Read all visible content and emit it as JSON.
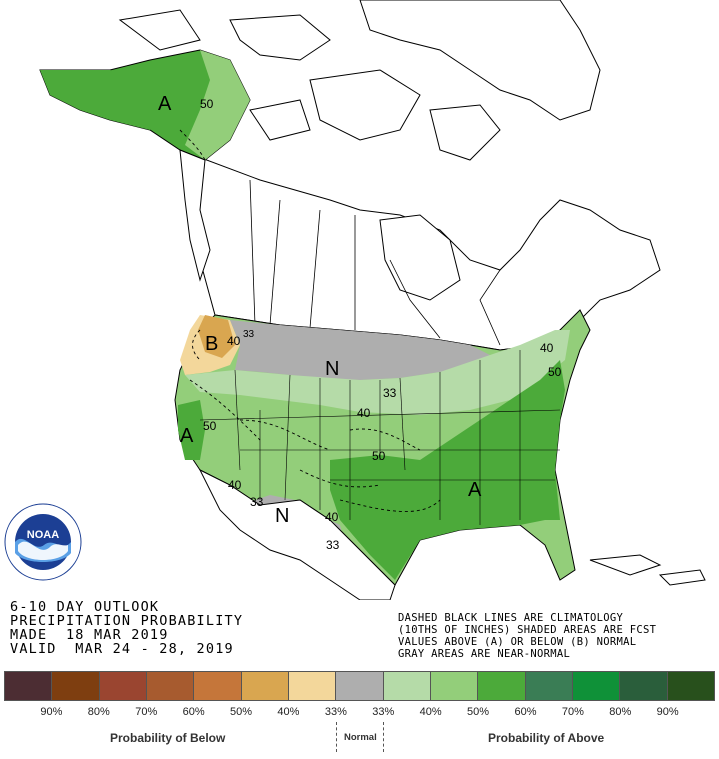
{
  "header": {
    "lines": [
      "6-10 DAY OUTLOOK",
      "PRECIPITATION PROBABILITY",
      "MADE  18 MAR 2019",
      "VALID  MAR 24 - 28, 2019"
    ]
  },
  "notes": {
    "lines": [
      "DASHED BLACK LINES ARE CLIMATOLOGY",
      "(10THS OF INCHES) SHADED AREAS ARE FCST",
      "VALUES ABOVE (A) OR BELOW (B) NORMAL",
      "GRAY AREAS ARE NEAR-NORMAL"
    ]
  },
  "map_labels": {
    "alaska_a": "A",
    "alaska_50": "50",
    "nw_b": "B",
    "nw_40": "40",
    "nw_33": "33",
    "plains_n": "N",
    "plains_33": "33",
    "plains_40": "40",
    "ca_a": "A",
    "ca_50": "50",
    "central_50": "50",
    "sw_40": "40",
    "sw_33": "33",
    "sw_n": "N",
    "tx_40": "40",
    "tx_33": "33",
    "se_a": "A",
    "ne_40": "40",
    "ne_50": "50"
  },
  "logo": {
    "text": "NOAA",
    "ring_text": "NATIONAL OCEANIC AND ATMOSPHERIC ADMINISTRATION · U.S. DEPARTMENT OF COMMERCE"
  },
  "legend": {
    "colors": [
      "#4c2d33",
      "#7e3e10",
      "#9a4530",
      "#a75b2f",
      "#c5763a",
      "#d9a650",
      "#f3d79b",
      "#aeaeae",
      "#b5dba8",
      "#93ce7a",
      "#4caa3a",
      "#3a7d55",
      "#0f9138",
      "#2a5e3b",
      "#28501c"
    ],
    "percents": [
      "90%",
      "80%",
      "70%",
      "60%",
      "50%",
      "40%",
      "33%",
      "33%",
      "40%",
      "50%",
      "60%",
      "70%",
      "80%",
      "90%"
    ],
    "below_label": "Probability of Below",
    "normal_label": "Normal",
    "above_label": "Probability of Above"
  },
  "colors": {
    "above_40": "#b5dba8",
    "above_50": "#93ce7a",
    "above_60": "#4caa3a",
    "near_normal": "#aeaeae",
    "below_40": "#d9a650",
    "below_33": "#f3d79b"
  }
}
